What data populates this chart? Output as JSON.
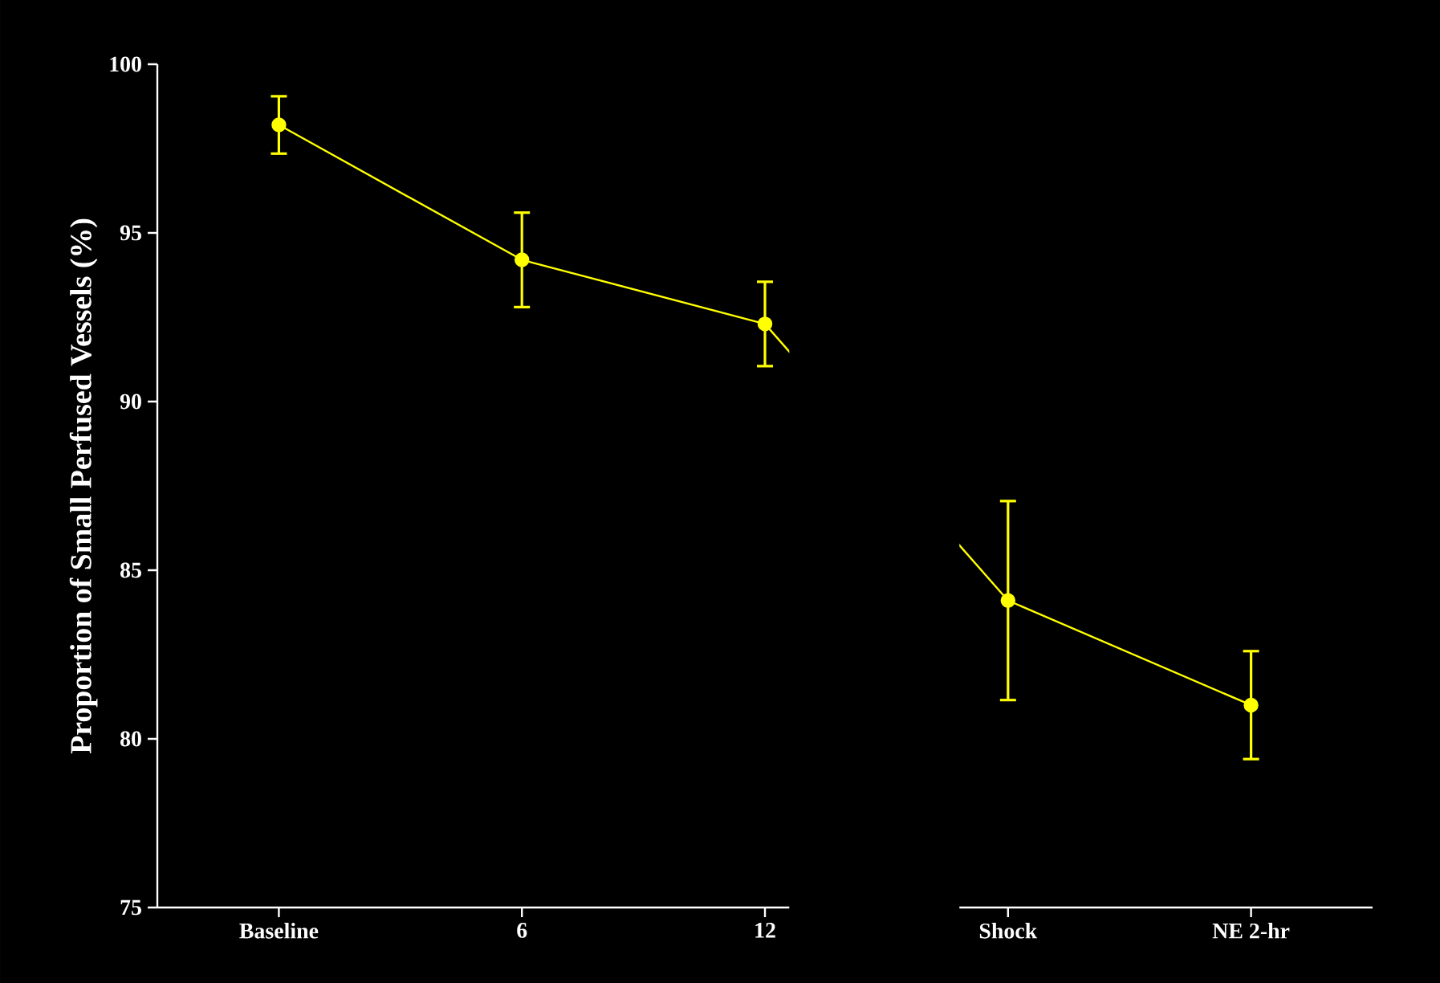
{
  "chart_data": {
    "type": "line",
    "ylabel": "Proportion of Small Perfused Vessels (%)",
    "categories": [
      "Baseline",
      "6",
      "12",
      "Shock",
      "NE 2-hr"
    ],
    "series": [
      {
        "color": "#ffff00",
        "values": [
          98.2,
          94.2,
          92.3,
          84.1,
          81.0
        ],
        "errors": [
          0.85,
          1.4,
          1.25,
          2.95,
          1.6
        ]
      }
    ],
    "ylim": [
      75,
      100
    ],
    "yticks": [
      75,
      80,
      85,
      90,
      95,
      100
    ],
    "marker": "circle",
    "line_style": "solid"
  }
}
